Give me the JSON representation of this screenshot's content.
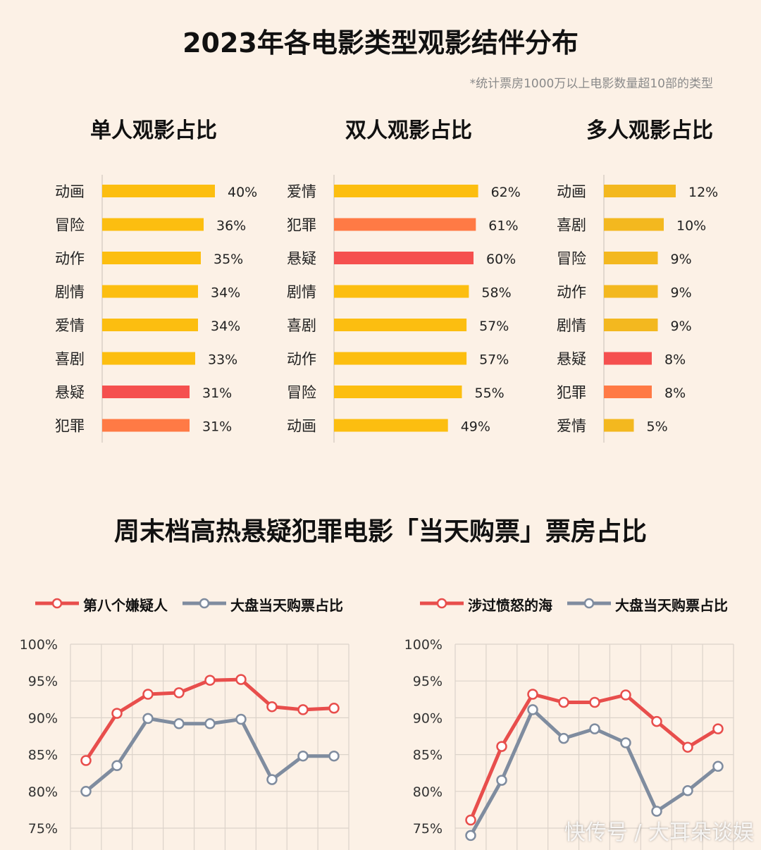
{
  "title": "2023年各电影类型观影结伴分布",
  "footnote": "*统计票房1000万以上电影数量超10部的类型",
  "section2_title": "周末档高热悬疑犯罪电影「当天购票」票房占比",
  "watermark": "快传号 / 大耳朵谈娱",
  "colors": {
    "yellow": "#fcbe10",
    "orange": "#ff7a45",
    "red": "#f5504f",
    "gold": "#f3b81f",
    "line_red": "#e84e4c",
    "line_gray": "#7f8c9f"
  },
  "chart_data": [
    {
      "type": "bar",
      "title": "单人观影占比",
      "categories": [
        "动画",
        "冒险",
        "动作",
        "剧情",
        "爱情",
        "喜剧",
        "悬疑",
        "犯罪"
      ],
      "values": [
        40,
        36,
        35,
        34,
        34,
        33,
        31,
        31
      ],
      "labels": [
        "40%",
        "36%",
        "35%",
        "34%",
        "34%",
        "33%",
        "31%",
        "31%"
      ],
      "colors": [
        "#fcbe10",
        "#fcbe10",
        "#fcbe10",
        "#fcbe10",
        "#fcbe10",
        "#fcbe10",
        "#f5504f",
        "#ff7a45"
      ],
      "xlim": [
        0,
        55
      ]
    },
    {
      "type": "bar",
      "title": "双人观影占比",
      "categories": [
        "爱情",
        "犯罪",
        "悬疑",
        "剧情",
        "喜剧",
        "动作",
        "冒险",
        "动画"
      ],
      "values": [
        62,
        61,
        60,
        58,
        57,
        57,
        55,
        49
      ],
      "labels": [
        "62%",
        "61%",
        "60%",
        "58%",
        "57%",
        "57%",
        "55%",
        "49%"
      ],
      "colors": [
        "#fcbe10",
        "#ff7a45",
        "#f5504f",
        "#fcbe10",
        "#fcbe10",
        "#fcbe10",
        "#fcbe10",
        "#fcbe10"
      ],
      "xlim": [
        0,
        75
      ]
    },
    {
      "type": "bar",
      "title": "多人观影占比",
      "categories": [
        "动画",
        "喜剧",
        "冒险",
        "动作",
        "剧情",
        "悬疑",
        "犯罪",
        "爱情"
      ],
      "values": [
        12,
        10,
        9,
        9,
        9,
        8,
        8,
        5
      ],
      "labels": [
        "12%",
        "10%",
        "9%",
        "9%",
        "9%",
        "8%",
        "8%",
        "5%"
      ],
      "colors": [
        "#f3b81f",
        "#f3b81f",
        "#f3b81f",
        "#f3b81f",
        "#f3b81f",
        "#f5504f",
        "#ff7a45",
        "#f3b81f"
      ],
      "xlim": [
        0,
        16
      ]
    },
    {
      "type": "line",
      "ylim": [
        75,
        100
      ],
      "yticks": [
        "75%",
        "80%",
        "85%",
        "90%",
        "95%",
        "100%"
      ],
      "series": [
        {
          "name": "第八个嫌疑人",
          "color": "#e84e4c",
          "values": [
            84.2,
            90.6,
            93.2,
            93.4,
            95.1,
            95.2,
            91.5,
            91.1,
            91.3
          ]
        },
        {
          "name": "大盘当天购票占比",
          "color": "#7f8c9f",
          "values": [
            80.0,
            83.5,
            89.9,
            89.2,
            89.2,
            89.8,
            81.6,
            84.8,
            84.8
          ]
        }
      ]
    },
    {
      "type": "line",
      "ylim": [
        75,
        100
      ],
      "yticks": [
        "75%",
        "80%",
        "85%",
        "90%",
        "95%",
        "100%"
      ],
      "series": [
        {
          "name": "涉过愤怒的海",
          "color": "#e84e4c",
          "values": [
            76.1,
            86.1,
            93.2,
            92.1,
            92.1,
            93.1,
            89.5,
            86.0,
            88.5
          ]
        },
        {
          "name": "大盘当天购票占比",
          "color": "#7f8c9f",
          "values": [
            74.0,
            81.5,
            91.1,
            87.2,
            88.5,
            86.6,
            77.3,
            80.1,
            83.4
          ]
        }
      ]
    }
  ]
}
